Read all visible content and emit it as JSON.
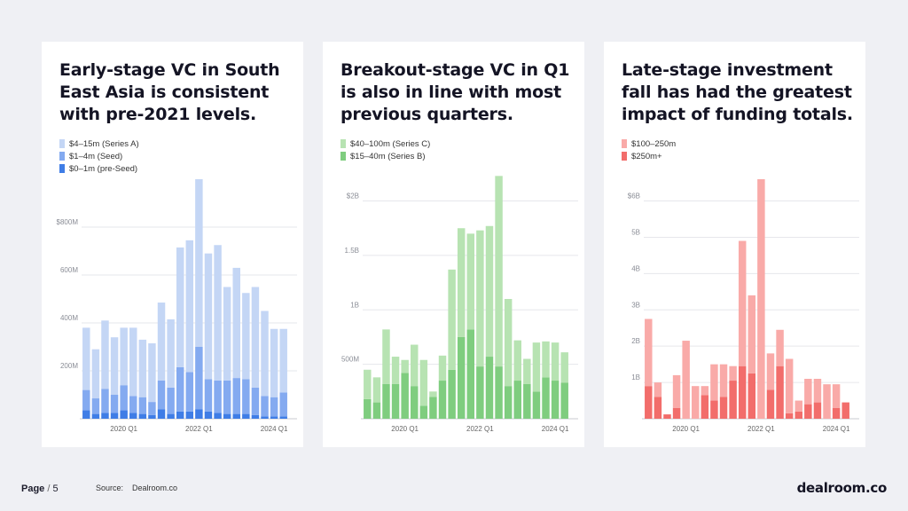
{
  "slide": {
    "page_label": "Page",
    "page_number": "5",
    "source_label": "Source:",
    "source_value": "Dealroom.co",
    "brand": "dealroom.co"
  },
  "chart_data": [
    {
      "type": "bar",
      "stacked": true,
      "title": "Early-stage VC in South East Asia is consistent with pre-2021 levels.",
      "unit_note": "USD",
      "ylim": [
        0,
        1000
      ],
      "yticks": [
        200,
        400,
        600,
        800
      ],
      "ytick_labels": [
        "200M",
        "400M",
        "600M",
        "$800M"
      ],
      "xtick_labels": [
        "2020 Q1",
        "2022 Q1",
        "2024 Q1"
      ],
      "xtick_index": [
        4,
        12,
        20
      ],
      "legend": [
        "$4–15m (Series A)",
        "$1–4m (Seed)",
        "$0–1m (pre-Seed)"
      ],
      "colors": [
        "#c4d6f5",
        "#84aaf0",
        "#3f7de6"
      ],
      "categories_count": 22,
      "series": [
        {
          "name": "$0–1m (pre-Seed)",
          "values": [
            35,
            20,
            25,
            25,
            35,
            25,
            20,
            15,
            40,
            20,
            30,
            30,
            40,
            30,
            25,
            20,
            20,
            20,
            15,
            10,
            10,
            10
          ]
        },
        {
          "name": "$1–4m (Seed)",
          "values": [
            85,
            65,
            100,
            75,
            105,
            70,
            70,
            55,
            120,
            110,
            185,
            165,
            260,
            135,
            135,
            140,
            150,
            145,
            115,
            85,
            80,
            100
          ]
        },
        {
          "name": "$4–15m (Series A)",
          "values": [
            260,
            205,
            285,
            240,
            240,
            285,
            240,
            245,
            325,
            285,
            500,
            550,
            700,
            525,
            565,
            390,
            460,
            360,
            420,
            355,
            285,
            265
          ]
        }
      ]
    },
    {
      "type": "bar",
      "stacked": true,
      "title": "Breakout-stage VC in Q1 is also in line with most previous quarters.",
      "ylim": [
        0,
        2.2
      ],
      "yticks": [
        0.5,
        1,
        1.5,
        2
      ],
      "ytick_labels": [
        "500M",
        "1B",
        "1.5B",
        "$2B"
      ],
      "xtick_labels": [
        "2020 Q1",
        "2022 Q1",
        "2024 Q1"
      ],
      "xtick_index": [
        4,
        12,
        20
      ],
      "legend": [
        "$40–100m (Series C)",
        "$15–40m (Series B)"
      ],
      "colors": [
        "#b7e3b2",
        "#7fcd7f"
      ],
      "categories_count": 22,
      "series": [
        {
          "name": "$15–40m (Series B)",
          "values": [
            0.18,
            0.15,
            0.32,
            0.32,
            0.42,
            0.3,
            0.12,
            0.2,
            0.35,
            0.45,
            0.75,
            0.82,
            0.48,
            0.57,
            0.48,
            0.3,
            0.35,
            0.32,
            0.25,
            0.38,
            0.35,
            0.33
          ]
        },
        {
          "name": "$40–100m (Series C)",
          "values": [
            0.27,
            0.23,
            0.5,
            0.25,
            0.12,
            0.38,
            0.42,
            0.05,
            0.23,
            0.92,
            1.0,
            0.88,
            1.25,
            1.2,
            1.75,
            0.8,
            0.37,
            0.23,
            0.45,
            0.33,
            0.35,
            0.28
          ]
        }
      ]
    },
    {
      "type": "bar",
      "stacked": true,
      "title": "Late-stage investment fall has had the greatest impact of funding totals.",
      "ylim": [
        0,
        6.6
      ],
      "yticks": [
        1,
        2,
        3,
        4,
        5,
        6
      ],
      "ytick_labels": [
        "1B",
        "2B",
        "3B",
        "4B",
        "5B",
        "$6B"
      ],
      "xtick_labels": [
        "2020 Q1",
        "2022 Q1",
        "2024 Q1"
      ],
      "xtick_index": [
        4,
        12,
        20
      ],
      "legend": [
        "$100–250m",
        "$250m+"
      ],
      "colors": [
        "#f9aaa8",
        "#f26d6b"
      ],
      "categories_count": 22,
      "series": [
        {
          "name": "$250m+",
          "values": [
            0.9,
            0.6,
            0.12,
            0.3,
            0.0,
            0.0,
            0.65,
            0.5,
            0.6,
            1.05,
            1.45,
            1.25,
            0.0,
            0.8,
            1.45,
            0.15,
            0.2,
            0.4,
            0.45,
            0.0,
            0.3,
            0.45
          ]
        },
        {
          "name": "$100–250m",
          "values": [
            1.85,
            0.4,
            0.0,
            0.9,
            2.15,
            0.9,
            0.25,
            1.0,
            0.9,
            0.4,
            3.45,
            2.15,
            6.6,
            1.0,
            1.0,
            1.5,
            0.3,
            0.7,
            0.65,
            0.95,
            0.65,
            0.0
          ]
        }
      ]
    }
  ]
}
